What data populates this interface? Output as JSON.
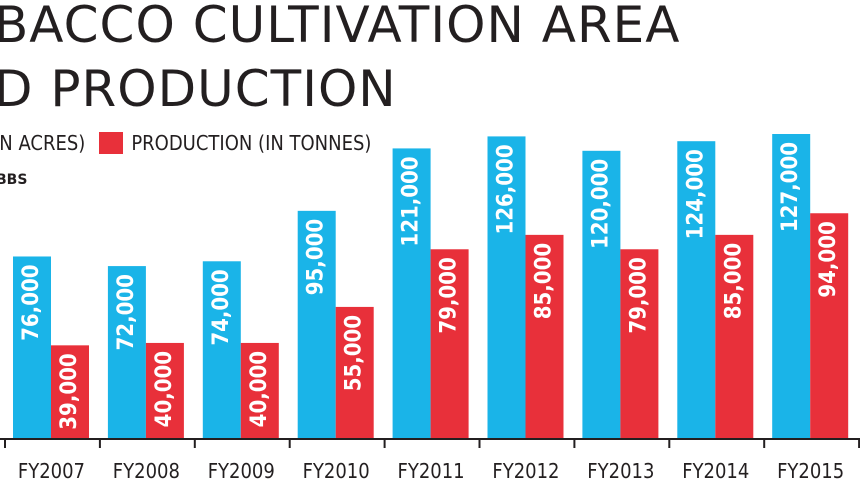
{
  "header": {
    "title_line1": "BACCO CULTIVATION AREA",
    "title_line2": "D PRODUCTION",
    "source": "BBS"
  },
  "legend": {
    "area_label": "IN ACRES)",
    "production_label": "PRODUCTION (IN TONNES)"
  },
  "colors": {
    "area": "#1ab4e8",
    "production": "#e8303a",
    "axis": "#231f20"
  },
  "chart_data": {
    "type": "bar",
    "categories": [
      "FY2007",
      "FY2008",
      "FY2009",
      "FY2010",
      "FY2011",
      "FY2012",
      "FY2013",
      "FY2014",
      "FY2015"
    ],
    "series": [
      {
        "name": "IN ACRES)",
        "values": [
          76000,
          72000,
          74000,
          95000,
          121000,
          126000,
          120000,
          124000,
          127000
        ],
        "labels": [
          "76,000",
          "72,000",
          "74,000",
          "95,000",
          "121,000",
          "126,000",
          "120,000",
          "124,000",
          "127,000"
        ]
      },
      {
        "name": "PRODUCTION (IN TONNES)",
        "values": [
          39000,
          40000,
          40000,
          55000,
          79000,
          85000,
          79000,
          85000,
          94000
        ],
        "labels": [
          "39,000",
          "40,000",
          "40,000",
          "55,000",
          "79,000",
          "85,000",
          "79,000",
          "85,000",
          "94,000"
        ]
      }
    ],
    "title": "BACCO CULTIVATION AREA D PRODUCTION",
    "xlabel": "",
    "ylabel": "",
    "grid": false,
    "legend_position": "top-left"
  }
}
